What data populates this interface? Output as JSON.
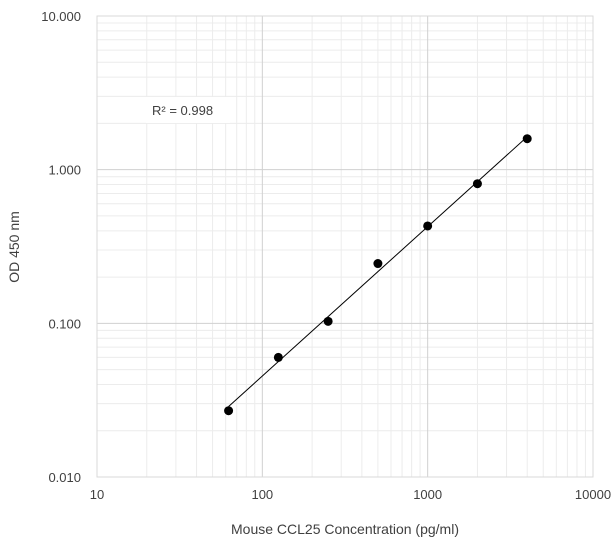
{
  "chart_data": {
    "type": "scatter",
    "x_scale": "log",
    "y_scale": "log",
    "xlabel": "Mouse CCL25  Concentration (pg/ml)",
    "ylabel": "OD 450 nm",
    "xlim": [
      10,
      10000
    ],
    "ylim": [
      0.01,
      10
    ],
    "x_ticks": [
      "10",
      "100",
      "1000",
      "10000"
    ],
    "y_ticks": [
      "0.010",
      "0.100",
      "1.000",
      "10.000"
    ],
    "grid": true,
    "trendline": "power",
    "annotation": "R² = 0.998",
    "series": [
      {
        "x": [
          62.5,
          125,
          250,
          500,
          1000,
          2000,
          4000
        ],
        "y": [
          0.027,
          0.06,
          0.103,
          0.245,
          0.43,
          0.81,
          1.59
        ]
      }
    ]
  }
}
